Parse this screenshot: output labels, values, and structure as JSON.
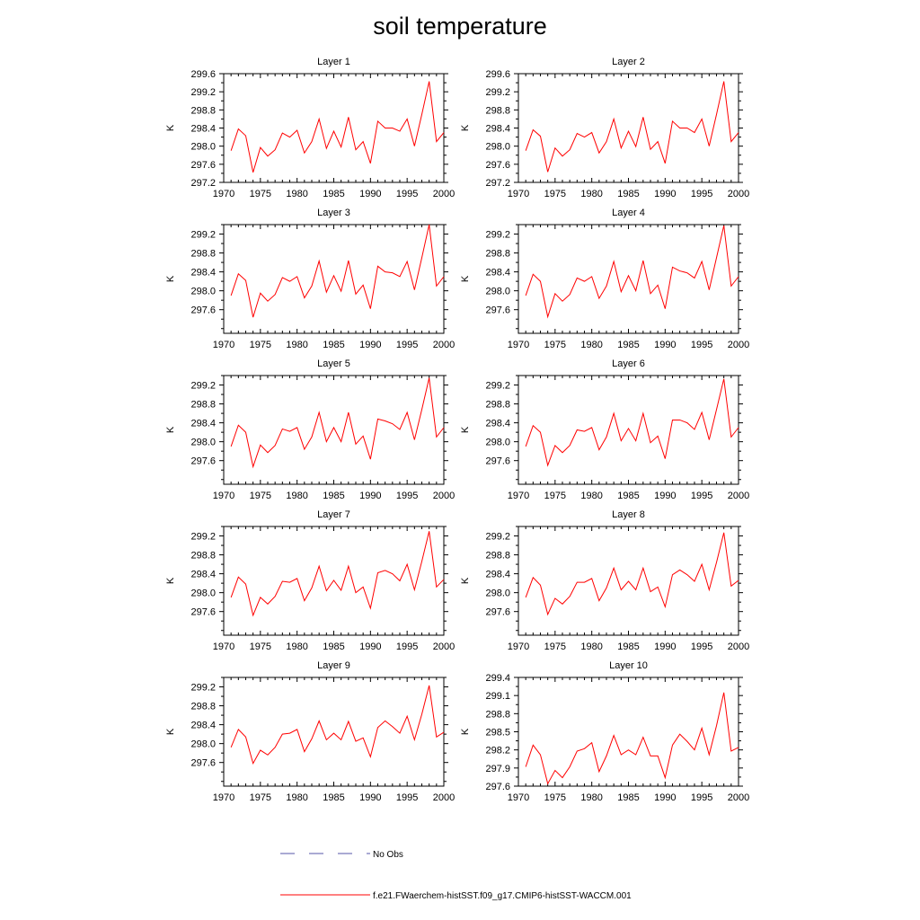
{
  "title": "soil temperature",
  "legend": {
    "obs_label": "No Obs",
    "model_label": "f.e21.FWaerchem-histSST.f09_g17.CMIP6-histSST-WACCM.001",
    "obs_color": "#5555aa",
    "model_color": "#ff0000"
  },
  "chart_data": [
    {
      "type": "line",
      "title": "Layer 1",
      "xlabel": "",
      "ylabel": "K",
      "xlim": [
        1970,
        2000
      ],
      "ylim": [
        297.2,
        299.6
      ],
      "xticks": [
        1970,
        1975,
        1980,
        1985,
        1990,
        1995,
        2000
      ],
      "yticks": [
        297.2,
        297.6,
        298.0,
        298.4,
        298.8,
        299.2,
        299.6
      ],
      "series": [
        {
          "x": [
            1971,
            1972,
            1973,
            1974,
            1975,
            1976,
            1977,
            1978,
            1979,
            1980,
            1981,
            1982,
            1983,
            1984,
            1985,
            1986,
            1987,
            1988,
            1989,
            1990,
            1991,
            1992,
            1993,
            1994,
            1995,
            1996,
            1997,
            1998,
            1999,
            2000
          ],
          "values": [
            297.9,
            298.38,
            298.23,
            297.42,
            297.97,
            297.78,
            297.92,
            298.29,
            298.2,
            298.35,
            297.85,
            298.1,
            298.6,
            297.95,
            298.33,
            297.98,
            298.64,
            297.92,
            298.1,
            297.62,
            298.55,
            298.4,
            298.4,
            298.33,
            298.6,
            298.0,
            298.7,
            299.43,
            298.1,
            298.3
          ]
        }
      ]
    },
    {
      "type": "line",
      "title": "Layer 2",
      "xlabel": "",
      "ylabel": "K",
      "xlim": [
        1970,
        2000
      ],
      "ylim": [
        297.2,
        299.6
      ],
      "xticks": [
        1970,
        1975,
        1980,
        1985,
        1990,
        1995,
        2000
      ],
      "yticks": [
        297.2,
        297.6,
        298.0,
        298.4,
        298.8,
        299.2,
        299.6
      ],
      "series": [
        {
          "x": [
            1971,
            1972,
            1973,
            1974,
            1975,
            1976,
            1977,
            1978,
            1979,
            1980,
            1981,
            1982,
            1983,
            1984,
            1985,
            1986,
            1987,
            1988,
            1989,
            1990,
            1991,
            1992,
            1993,
            1994,
            1995,
            1996,
            1997,
            1998,
            1999,
            2000
          ],
          "values": [
            297.9,
            298.36,
            298.22,
            297.43,
            297.96,
            297.78,
            297.92,
            298.28,
            298.2,
            298.3,
            297.85,
            298.1,
            298.6,
            297.96,
            298.33,
            297.99,
            298.64,
            297.93,
            298.1,
            297.62,
            298.55,
            298.4,
            298.4,
            298.3,
            298.6,
            298.0,
            298.7,
            299.43,
            298.1,
            298.3
          ]
        }
      ]
    },
    {
      "type": "line",
      "title": "Layer 3",
      "xlabel": "",
      "ylabel": "K",
      "xlim": [
        1970,
        2000
      ],
      "ylim": [
        297.1,
        299.4
      ],
      "xticks": [
        1970,
        1975,
        1980,
        1985,
        1990,
        1995,
        2000
      ],
      "yticks": [
        297.6,
        298.0,
        298.4,
        298.8,
        299.2
      ],
      "series": [
        {
          "x": [
            1971,
            1972,
            1973,
            1974,
            1975,
            1976,
            1977,
            1978,
            1979,
            1980,
            1981,
            1982,
            1983,
            1984,
            1985,
            1986,
            1987,
            1988,
            1989,
            1990,
            1991,
            1992,
            1993,
            1994,
            1995,
            1996,
            1997,
            1998,
            1999,
            2000
          ],
          "values": [
            297.9,
            298.36,
            298.22,
            297.44,
            297.95,
            297.78,
            297.92,
            298.28,
            298.2,
            298.3,
            297.85,
            298.1,
            298.63,
            297.97,
            298.32,
            297.99,
            298.64,
            297.93,
            298.12,
            297.62,
            298.52,
            298.4,
            298.38,
            298.3,
            298.62,
            298.02,
            298.7,
            299.4,
            298.1,
            298.3
          ]
        }
      ]
    },
    {
      "type": "line",
      "title": "Layer 4",
      "xlabel": "",
      "ylabel": "K",
      "xlim": [
        1970,
        2000
      ],
      "ylim": [
        297.1,
        299.4
      ],
      "xticks": [
        1970,
        1975,
        1980,
        1985,
        1990,
        1995,
        2000
      ],
      "yticks": [
        297.6,
        298.0,
        298.4,
        298.8,
        299.2
      ],
      "series": [
        {
          "x": [
            1971,
            1972,
            1973,
            1974,
            1975,
            1976,
            1977,
            1978,
            1979,
            1980,
            1981,
            1982,
            1983,
            1984,
            1985,
            1986,
            1987,
            1988,
            1989,
            1990,
            1991,
            1992,
            1993,
            1994,
            1995,
            1996,
            1997,
            1998,
            1999,
            2000
          ],
          "values": [
            297.9,
            298.35,
            298.2,
            297.45,
            297.94,
            297.78,
            297.92,
            298.27,
            298.2,
            298.3,
            297.84,
            298.1,
            298.62,
            297.98,
            298.32,
            298.0,
            298.64,
            297.94,
            298.12,
            297.62,
            298.5,
            298.42,
            298.38,
            298.27,
            298.62,
            298.02,
            298.7,
            299.38,
            298.1,
            298.3
          ]
        }
      ]
    },
    {
      "type": "line",
      "title": "Layer 5",
      "xlabel": "",
      "ylabel": "K",
      "xlim": [
        1970,
        2000
      ],
      "ylim": [
        297.1,
        299.4
      ],
      "xticks": [
        1970,
        1975,
        1980,
        1985,
        1990,
        1995,
        2000
      ],
      "yticks": [
        297.6,
        298.0,
        298.4,
        298.8,
        299.2
      ],
      "series": [
        {
          "x": [
            1971,
            1972,
            1973,
            1974,
            1975,
            1976,
            1977,
            1978,
            1979,
            1980,
            1981,
            1982,
            1983,
            1984,
            1985,
            1986,
            1987,
            1988,
            1989,
            1990,
            1991,
            1992,
            1993,
            1994,
            1995,
            1996,
            1997,
            1998,
            1999,
            2000
          ],
          "values": [
            297.9,
            298.35,
            298.2,
            297.47,
            297.93,
            297.77,
            297.92,
            298.27,
            298.22,
            298.3,
            297.84,
            298.1,
            298.62,
            298.0,
            298.3,
            298.0,
            298.62,
            297.95,
            298.12,
            297.63,
            298.48,
            298.44,
            298.38,
            298.26,
            298.62,
            298.04,
            298.68,
            299.35,
            298.1,
            298.3
          ]
        }
      ]
    },
    {
      "type": "line",
      "title": "Layer 6",
      "xlabel": "",
      "ylabel": "K",
      "xlim": [
        1970,
        2000
      ],
      "ylim": [
        297.1,
        299.4
      ],
      "xticks": [
        1970,
        1975,
        1980,
        1985,
        1990,
        1995,
        2000
      ],
      "yticks": [
        297.6,
        298.0,
        298.4,
        298.8,
        299.2
      ],
      "series": [
        {
          "x": [
            1971,
            1972,
            1973,
            1974,
            1975,
            1976,
            1977,
            1978,
            1979,
            1980,
            1981,
            1982,
            1983,
            1984,
            1985,
            1986,
            1987,
            1988,
            1989,
            1990,
            1991,
            1992,
            1993,
            1994,
            1995,
            1996,
            1997,
            1998,
            1999,
            2000
          ],
          "values": [
            297.9,
            298.34,
            298.2,
            297.5,
            297.92,
            297.77,
            297.92,
            298.25,
            298.22,
            298.3,
            297.83,
            298.1,
            298.6,
            298.02,
            298.28,
            298.02,
            298.6,
            297.98,
            298.12,
            297.64,
            298.46,
            298.46,
            298.4,
            298.26,
            298.62,
            298.04,
            298.68,
            299.33,
            298.1,
            298.3
          ]
        }
      ]
    },
    {
      "type": "line",
      "title": "Layer 7",
      "xlabel": "",
      "ylabel": "K",
      "xlim": [
        1970,
        2000
      ],
      "ylim": [
        297.1,
        299.4
      ],
      "xticks": [
        1970,
        1975,
        1980,
        1985,
        1990,
        1995,
        2000
      ],
      "yticks": [
        297.6,
        298.0,
        298.4,
        298.8,
        299.2
      ],
      "series": [
        {
          "x": [
            1971,
            1972,
            1973,
            1974,
            1975,
            1976,
            1977,
            1978,
            1979,
            1980,
            1981,
            1982,
            1983,
            1984,
            1985,
            1986,
            1987,
            1988,
            1989,
            1990,
            1991,
            1992,
            1993,
            1994,
            1995,
            1996,
            1997,
            1998,
            1999,
            2000
          ],
          "values": [
            297.9,
            298.33,
            298.18,
            297.52,
            297.9,
            297.76,
            297.92,
            298.24,
            298.22,
            298.3,
            297.83,
            298.1,
            298.56,
            298.04,
            298.26,
            298.05,
            298.56,
            298.0,
            298.12,
            297.67,
            298.42,
            298.47,
            298.4,
            298.25,
            298.6,
            298.06,
            298.66,
            299.3,
            298.12,
            298.28
          ]
        }
      ]
    },
    {
      "type": "line",
      "title": "Layer 8",
      "xlabel": "",
      "ylabel": "K",
      "xlim": [
        1970,
        2000
      ],
      "ylim": [
        297.1,
        299.4
      ],
      "xticks": [
        1970,
        1975,
        1980,
        1985,
        1990,
        1995,
        2000
      ],
      "yticks": [
        297.6,
        298.0,
        298.4,
        298.8,
        299.2
      ],
      "series": [
        {
          "x": [
            1971,
            1972,
            1973,
            1974,
            1975,
            1976,
            1977,
            1978,
            1979,
            1980,
            1981,
            1982,
            1983,
            1984,
            1985,
            1986,
            1987,
            1988,
            1989,
            1990,
            1991,
            1992,
            1993,
            1994,
            1995,
            1996,
            1997,
            1998,
            1999,
            2000
          ],
          "values": [
            297.9,
            298.32,
            298.16,
            297.54,
            297.88,
            297.76,
            297.92,
            298.22,
            298.22,
            298.3,
            297.83,
            298.1,
            298.52,
            298.06,
            298.24,
            298.06,
            298.52,
            298.02,
            298.12,
            297.7,
            298.38,
            298.48,
            298.38,
            298.24,
            298.6,
            298.06,
            298.64,
            299.27,
            298.14,
            298.26
          ]
        }
      ]
    },
    {
      "type": "line",
      "title": "Layer 9",
      "xlabel": "",
      "ylabel": "K",
      "xlim": [
        1970,
        2000
      ],
      "ylim": [
        297.1,
        299.4
      ],
      "xticks": [
        1970,
        1975,
        1980,
        1985,
        1990,
        1995,
        2000
      ],
      "yticks": [
        297.6,
        298.0,
        298.4,
        298.8,
        299.2
      ],
      "series": [
        {
          "x": [
            1971,
            1972,
            1973,
            1974,
            1975,
            1976,
            1977,
            1978,
            1979,
            1980,
            1981,
            1982,
            1983,
            1984,
            1985,
            1986,
            1987,
            1988,
            1989,
            1990,
            1991,
            1992,
            1993,
            1994,
            1995,
            1996,
            1997,
            1998,
            1999,
            2000
          ],
          "values": [
            297.92,
            298.3,
            298.14,
            297.58,
            297.86,
            297.76,
            297.92,
            298.2,
            298.22,
            298.3,
            297.83,
            298.1,
            298.48,
            298.08,
            298.22,
            298.08,
            298.47,
            298.05,
            298.12,
            297.72,
            298.34,
            298.48,
            298.36,
            298.22,
            298.58,
            298.08,
            298.62,
            299.23,
            298.14,
            298.24
          ]
        }
      ]
    },
    {
      "type": "line",
      "title": "Layer 10",
      "xlabel": "",
      "ylabel": "K",
      "xlim": [
        1970,
        2000
      ],
      "ylim": [
        297.6,
        299.4
      ],
      "xticks": [
        1970,
        1975,
        1980,
        1985,
        1990,
        1995,
        2000
      ],
      "yticks": [
        297.6,
        297.9,
        298.2,
        298.5,
        298.8,
        299.1,
        299.4
      ],
      "series": [
        {
          "x": [
            1971,
            1972,
            1973,
            1974,
            1975,
            1976,
            1977,
            1978,
            1979,
            1980,
            1981,
            1982,
            1983,
            1984,
            1985,
            1986,
            1987,
            1988,
            1989,
            1990,
            1991,
            1992,
            1993,
            1994,
            1995,
            1996,
            1997,
            1998,
            1999,
            2000
          ],
          "values": [
            297.92,
            298.28,
            298.12,
            297.64,
            297.86,
            297.74,
            297.92,
            298.18,
            298.22,
            298.32,
            297.84,
            298.1,
            298.44,
            298.12,
            298.2,
            298.12,
            298.41,
            298.1,
            298.1,
            297.74,
            298.28,
            298.46,
            298.34,
            298.2,
            298.56,
            298.12,
            298.6,
            299.15,
            298.18,
            298.24
          ]
        }
      ]
    }
  ]
}
